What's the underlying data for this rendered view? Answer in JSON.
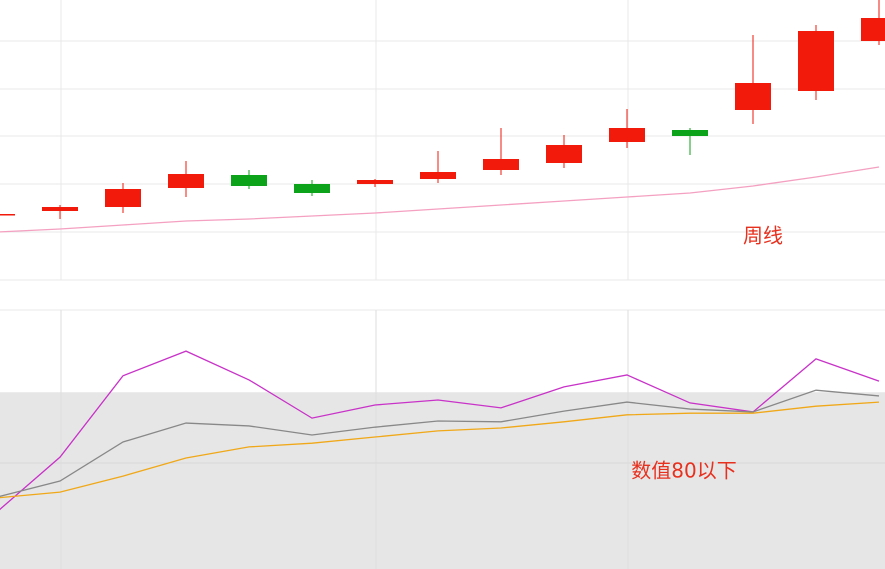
{
  "chart_data": [
    {
      "type": "candlestick",
      "categories": [
        null,
        null,
        null,
        null,
        null,
        null,
        null,
        null,
        null,
        null,
        null,
        null,
        null,
        null,
        null
      ],
      "open": [
        65,
        69,
        73,
        92,
        105,
        96,
        96,
        101,
        110,
        117,
        138,
        150,
        170,
        189,
        239
      ],
      "high": [
        66,
        75,
        97,
        119,
        110,
        100,
        101,
        129,
        152,
        145,
        171,
        152,
        245,
        255,
        280
      ],
      "low": [
        65,
        61,
        67,
        83,
        91,
        84,
        93,
        97,
        105,
        112,
        132,
        125,
        156,
        180,
        235
      ],
      "close": [
        66,
        73,
        91,
        106,
        94,
        87,
        100,
        108,
        121,
        135,
        152,
        144,
        197,
        249,
        262
      ],
      "up_color": "#f21a0a",
      "down_color": "#0ca21a",
      "lines": [
        {
          "color": "#f4a0c0",
          "values": [
            48,
            51,
            55,
            59,
            61,
            64,
            67,
            71,
            75,
            79,
            83,
            87,
            94,
            103,
            113
          ]
        }
      ],
      "ylim": [
        0,
        280
      ],
      "annotation": "周线"
    },
    {
      "type": "line",
      "categories": [
        null,
        null,
        null,
        null,
        null,
        null,
        null,
        null,
        null,
        null,
        null,
        null,
        null,
        null,
        null
      ],
      "series": [
        {
          "color": "#c832c8",
          "values": [
            50.9,
            64.2,
            84.0,
            90.0,
            83.0,
            73.7,
            76.9,
            78.1,
            76.2,
            81.3,
            84.2,
            77.4,
            75.2,
            88.1,
            82.7
          ]
        },
        {
          "color": "#888888",
          "values": [
            54.5,
            58.4,
            67.9,
            72.5,
            71.8,
            69.6,
            71.5,
            73.0,
            72.8,
            75.4,
            77.6,
            75.9,
            75.2,
            80.5,
            79.1
          ]
        },
        {
          "color": "#f0a818",
          "values": [
            54.3,
            55.7,
            59.6,
            64.0,
            66.7,
            67.6,
            69.1,
            70.6,
            71.3,
            72.8,
            74.5,
            74.9,
            74.9,
            76.6,
            77.6
          ]
        }
      ],
      "shade_below": 80,
      "shade_color": "#e6e6e6",
      "ylim": [
        37,
        100
      ],
      "annotation": "数值80以下"
    }
  ]
}
